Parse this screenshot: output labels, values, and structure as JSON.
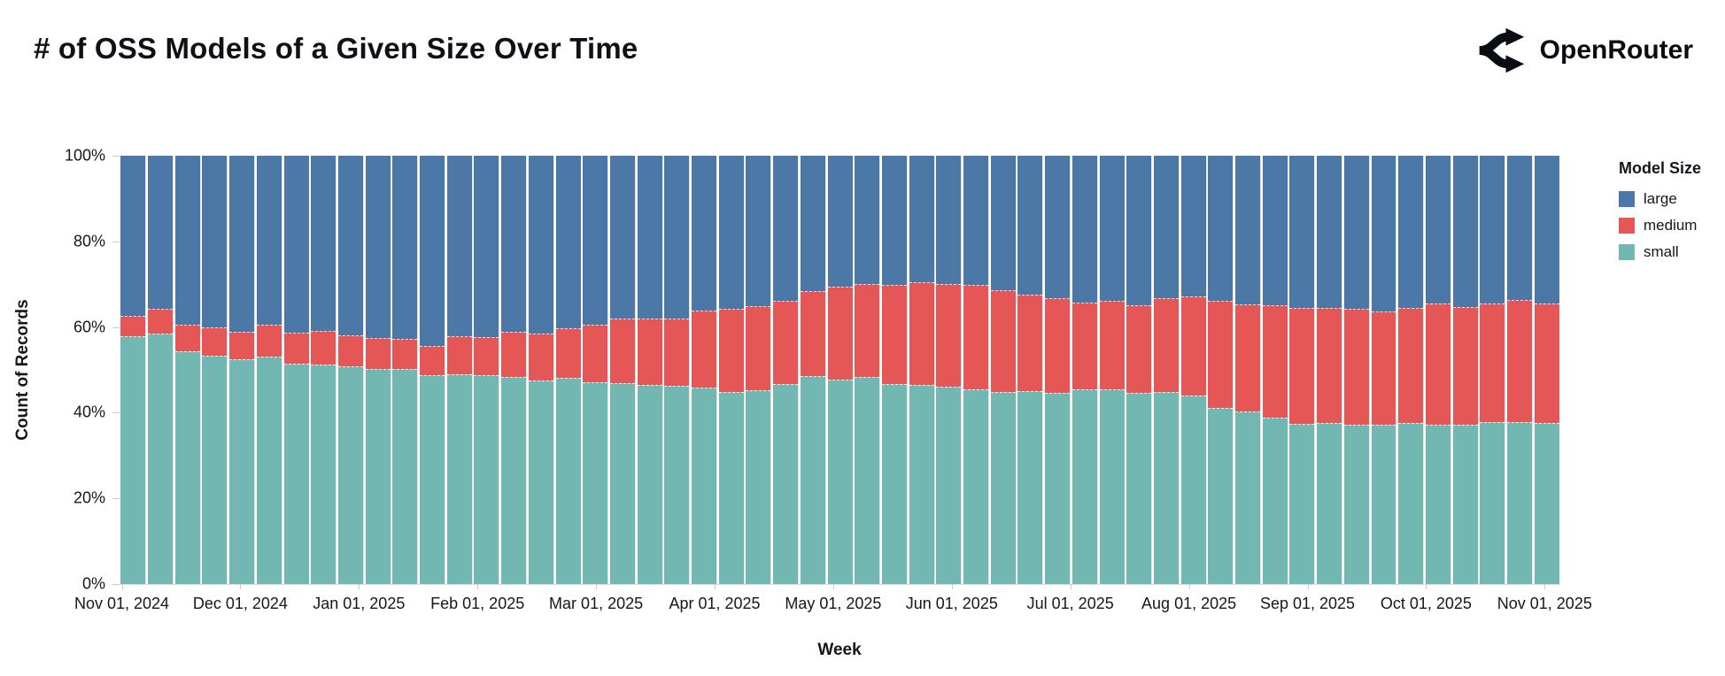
{
  "header": {
    "title": "# of OSS Models of a Given Size Over Time",
    "logo_text": "OpenRouter"
  },
  "chart_data": {
    "type": "bar",
    "variant": "stacked-100-percent",
    "title": "# of OSS Models of a Given Size Over Time",
    "xlabel": "Week",
    "ylabel": "Count of Records",
    "ylim": [
      0,
      100
    ],
    "grid": false,
    "y_tick_labels": [
      "0%",
      "20%",
      "40%",
      "60%",
      "80%",
      "100%"
    ],
    "y_tick_values": [
      0,
      20,
      40,
      60,
      80,
      100
    ],
    "x_tick_labels": [
      "Nov 01, 2024",
      "Dec 01, 2024",
      "Jan 01, 2025",
      "Feb 01, 2025",
      "Mar 01, 2025",
      "Apr 01, 2025",
      "May 01, 2025",
      "Jun 01, 2025",
      "Jul 01, 2025",
      "Aug 01, 2025",
      "Sep 01, 2025",
      "Oct 01, 2025",
      "Nov 01, 2025"
    ],
    "legend": {
      "title": "Model Size",
      "position": "right",
      "entries": [
        {
          "label": "large",
          "color": "#4c78a8"
        },
        {
          "label": "medium",
          "color": "#e45756"
        },
        {
          "label": "small",
          "color": "#72b7b2"
        }
      ]
    },
    "categories": [
      1,
      2,
      3,
      4,
      5,
      6,
      7,
      8,
      9,
      10,
      11,
      12,
      13,
      14,
      15,
      16,
      17,
      18,
      19,
      20,
      21,
      22,
      23,
      24,
      25,
      26,
      27,
      28,
      29,
      30,
      31,
      32,
      33,
      34,
      35,
      36,
      37,
      38,
      39,
      40,
      41,
      42,
      43,
      44,
      45,
      46,
      47,
      48,
      49,
      50,
      51,
      52,
      53
    ],
    "categories_unit": "week (weekly bins, Nov 01, 2024 - Nov 01, 2025)",
    "series": [
      {
        "name": "small",
        "color": "#72b7b2",
        "values": [
          57.9,
          58.4,
          54.4,
          53.3,
          52.4,
          53.1,
          51.5,
          51.3,
          50.8,
          50.3,
          50.2,
          48.8,
          48.9,
          48.8,
          48.4,
          47.5,
          48.2,
          47.2,
          46.8,
          46.4,
          46.2,
          45.9,
          44.8,
          45.3,
          46.7,
          48.6,
          47.7,
          48.3,
          46.7,
          46.5,
          46.0,
          45.5,
          44.8,
          45.0,
          44.6,
          45.5,
          45.5,
          44.6,
          44.8,
          44.1,
          41.1,
          40.2,
          38.8,
          37.4,
          37.7,
          37.2,
          37.2,
          37.6,
          37.1,
          37.2,
          37.9,
          37.8,
          37.5
        ]
      },
      {
        "name": "medium",
        "color": "#e45756",
        "values": [
          4.8,
          5.9,
          6.2,
          6.7,
          6.4,
          7.4,
          7.1,
          7.7,
          7.3,
          7.1,
          7.0,
          6.7,
          9.0,
          8.8,
          10.4,
          10.9,
          11.5,
          13.4,
          15.2,
          15.5,
          15.8,
          18.0,
          19.5,
          19.5,
          19.4,
          19.7,
          21.7,
          21.8,
          23.1,
          24.0,
          24.0,
          24.4,
          23.7,
          22.6,
          22.1,
          20.3,
          20.6,
          20.4,
          21.9,
          23.1,
          25.0,
          25.0,
          26.3,
          27.0,
          26.7,
          27.0,
          26.5,
          26.8,
          28.3,
          27.5,
          27.5,
          28.5,
          28.0
        ]
      },
      {
        "name": "large",
        "color": "#4c78a8",
        "values": [
          37.3,
          35.7,
          39.4,
          40.0,
          41.2,
          39.5,
          41.4,
          41.0,
          41.9,
          42.6,
          42.8,
          44.5,
          42.1,
          42.4,
          41.2,
          41.6,
          40.3,
          39.4,
          38.0,
          38.1,
          38.0,
          36.1,
          35.7,
          35.2,
          33.9,
          31.7,
          30.6,
          29.9,
          30.2,
          29.5,
          30.0,
          30.1,
          31.5,
          32.4,
          33.3,
          34.2,
          33.9,
          35.0,
          33.3,
          32.8,
          33.9,
          34.8,
          34.9,
          35.6,
          35.6,
          35.8,
          36.3,
          35.6,
          34.6,
          35.3,
          34.6,
          33.7,
          34.5
        ]
      }
    ],
    "units": "percent"
  }
}
